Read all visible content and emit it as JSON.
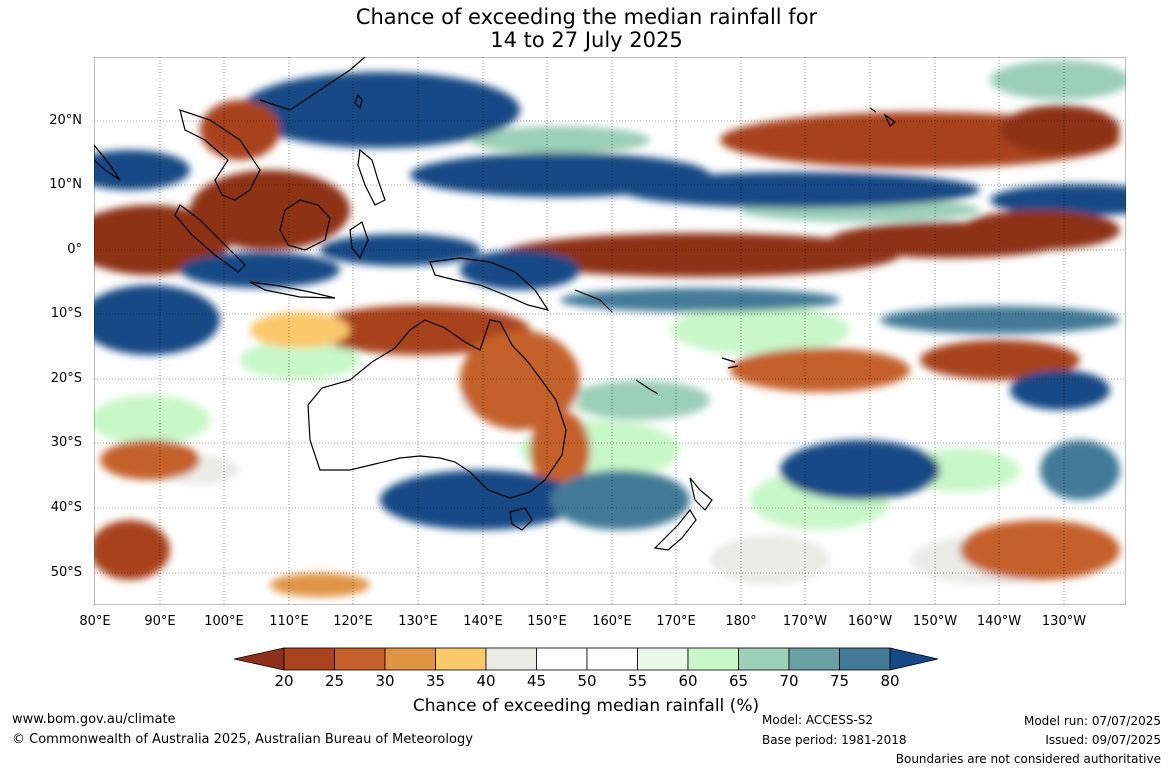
{
  "title_line1": "Chance of exceeding the median rainfall for",
  "title_line2": "14 to 27 July 2025",
  "lat_labels": [
    "20°N",
    "10°N",
    "0°",
    "10°S",
    "20°S",
    "30°S",
    "40°S",
    "50°S"
  ],
  "lon_labels": [
    "80°E",
    "90°E",
    "100°E",
    "110°E",
    "120°E",
    "130°E",
    "140°E",
    "150°E",
    "160°E",
    "170°E",
    "180°",
    "170°W",
    "160°W",
    "150°W",
    "140°W",
    "130°W"
  ],
  "colorbar": {
    "title": "Chance of exceeding median rainfall (%)",
    "tick_labels": [
      "20",
      "25",
      "30",
      "35",
      "40",
      "45",
      "50",
      "55",
      "60",
      "65",
      "70",
      "75",
      "80"
    ],
    "colors": [
      "#8e3019",
      "#a8421f",
      "#c4612c",
      "#e09445",
      "#fbc86a",
      "#ebebe5",
      "#ffffff",
      "#ffffff",
      "#eaf8ea",
      "#c8f7c8",
      "#9bcfb7",
      "#6aa0a4",
      "#427a98",
      "#164a85"
    ]
  },
  "footer": {
    "website": "www.bom.gov.au/climate",
    "copyright": "© Commonwealth of Australia 2025, Australian Bureau of Meteorology",
    "model": "Model: ACCESS-S2",
    "base_period": "Base period: 1981-2018",
    "model_run": "Model run: 07/07/2025",
    "issued": "Issued: 09/07/2025",
    "disclaimer": "Boundaries are not considered authoritative"
  }
}
